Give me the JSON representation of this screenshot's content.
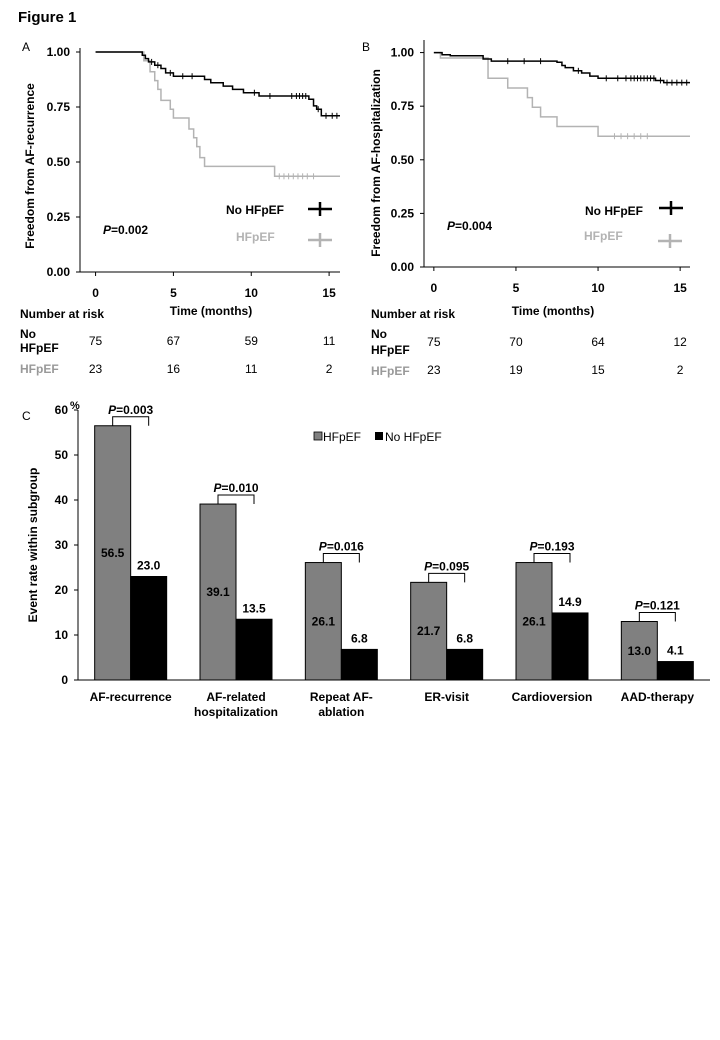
{
  "figure_title": "Figure 1",
  "colors": {
    "no_hfpef": "#000000",
    "hfpef": "#b3b3b3",
    "bar_hfpef": "#808080",
    "bar_no_hfpef": "#000000"
  },
  "risk_table": {
    "heading": "Number at risk",
    "row1_label_line1": "No",
    "row1_label_line2": "HFpEF",
    "row2_label": "HFpEF"
  },
  "chart_data": [
    {
      "panel": "A",
      "type": "line",
      "ylabel": "Freedom from AF-recurrence",
      "xlabel": "Time (months)",
      "xlim": [
        -1,
        15.7
      ],
      "ylim": [
        0,
        1.0
      ],
      "xticks": [
        "0",
        "5",
        "10",
        "15"
      ],
      "yticks": [
        "0.00",
        "0.25",
        "0.50",
        "0.75",
        "1.00"
      ],
      "p_label": "P",
      "p_value": "=0.002",
      "series": [
        {
          "name": "No HFpEF",
          "steps": [
            [
              0,
              1.0
            ],
            [
              3.0,
              0.985
            ],
            [
              3.2,
              0.97
            ],
            [
              3.4,
              0.955
            ],
            [
              3.8,
              0.94
            ],
            [
              4.2,
              0.925
            ],
            [
              4.5,
              0.905
            ],
            [
              5.0,
              0.89
            ],
            [
              7.0,
              0.875
            ],
            [
              7.4,
              0.86
            ],
            [
              8.2,
              0.845
            ],
            [
              8.8,
              0.83
            ],
            [
              9.5,
              0.815
            ],
            [
              10.5,
              0.8
            ],
            [
              13.7,
              0.785
            ],
            [
              14.0,
              0.755
            ],
            [
              14.2,
              0.74
            ],
            [
              14.5,
              0.71
            ],
            [
              15.7,
              0.71
            ]
          ],
          "censor": [
            3.6,
            4.0,
            4.8,
            5.6,
            6.2,
            10.2,
            11.2,
            12.6,
            12.9,
            13.1,
            13.3,
            13.5,
            14.3,
            14.8,
            15.2,
            15.5
          ]
        },
        {
          "name": "HFpEF",
          "steps": [
            [
              0,
              1.0
            ],
            [
              3.1,
              0.96
            ],
            [
              3.5,
              0.91
            ],
            [
              3.8,
              0.87
            ],
            [
              4.0,
              0.83
            ],
            [
              4.2,
              0.78
            ],
            [
              4.8,
              0.74
            ],
            [
              5.0,
              0.7
            ],
            [
              6.0,
              0.65
            ],
            [
              6.3,
              0.61
            ],
            [
              6.5,
              0.57
            ],
            [
              6.7,
              0.52
            ],
            [
              7.0,
              0.48
            ],
            [
              11.5,
              0.435
            ],
            [
              15.7,
              0.435
            ]
          ],
          "censor": [
            11.8,
            12.1,
            12.4,
            12.7,
            13.0,
            13.3,
            13.6,
            14.0
          ]
        }
      ],
      "at_risk": {
        "times": [
          0,
          5,
          10,
          15
        ],
        "No HFpEF": [
          "75",
          "67",
          "59",
          "11"
        ],
        "HFpEF": [
          "23",
          "16",
          "11",
          "2"
        ]
      }
    },
    {
      "panel": "B",
      "type": "line",
      "ylabel": "Freedom from AF-hospitalization",
      "xlabel": "Time (months)",
      "xlim": [
        -0.6,
        15.6
      ],
      "ylim": [
        0,
        1.04
      ],
      "xticks": [
        "0",
        "5",
        "10",
        "15"
      ],
      "yticks": [
        "0.00",
        "0.25",
        "0.50",
        "0.75",
        "1.00"
      ],
      "p_label": "P",
      "p_value": "=0.004",
      "series": [
        {
          "name": "No HFpEF",
          "steps": [
            [
              0,
              1.0
            ],
            [
              0.5,
              0.99
            ],
            [
              1.0,
              0.985
            ],
            [
              3.0,
              0.97
            ],
            [
              3.5,
              0.96
            ],
            [
              7.5,
              0.955
            ],
            [
              7.8,
              0.94
            ],
            [
              8.0,
              0.93
            ],
            [
              8.5,
              0.915
            ],
            [
              9.0,
              0.905
            ],
            [
              9.5,
              0.89
            ],
            [
              10.0,
              0.88
            ],
            [
              13.5,
              0.87
            ],
            [
              14.0,
              0.86
            ],
            [
              15.6,
              0.86
            ]
          ],
          "censor": [
            4.5,
            5.5,
            6.5,
            8.8,
            10.5,
            11.2,
            11.7,
            12.0,
            12.2,
            12.4,
            12.6,
            12.8,
            13.0,
            13.2,
            13.4,
            13.8,
            14.2,
            14.5,
            14.8,
            15.1,
            15.4
          ]
        },
        {
          "name": "HFpEF",
          "steps": [
            [
              0,
              1.0
            ],
            [
              0.4,
              0.975
            ],
            [
              3.3,
              0.88
            ],
            [
              4.5,
              0.835
            ],
            [
              5.7,
              0.79
            ],
            [
              6.0,
              0.745
            ],
            [
              6.5,
              0.7
            ],
            [
              7.5,
              0.655
            ],
            [
              10.0,
              0.61
            ],
            [
              15.6,
              0.61
            ]
          ],
          "censor": [
            11.0,
            11.4,
            11.8,
            12.2,
            12.6,
            13.0
          ]
        }
      ],
      "at_risk": {
        "times": [
          0,
          5,
          10,
          15
        ],
        "No HFpEF": [
          "75",
          "70",
          "64",
          "12"
        ],
        "HFpEF": [
          "23",
          "19",
          "15",
          "2"
        ]
      }
    },
    {
      "panel": "C",
      "type": "bar",
      "ylabel": "Event rate within subgroup",
      "yunit": "%",
      "ylim": [
        0,
        60
      ],
      "yticks": [
        "0",
        "10",
        "20",
        "30",
        "40",
        "50",
        "60"
      ],
      "categories": [
        [
          "AF-recurrence"
        ],
        [
          "AF-related",
          "hospitalization"
        ],
        [
          "Repeat AF-",
          "ablation"
        ],
        [
          "ER-visit"
        ],
        [
          "Cardioversion"
        ],
        [
          "AAD-therapy"
        ]
      ],
      "series": [
        {
          "name": "HFpEF",
          "values": [
            56.5,
            39.1,
            26.1,
            21.7,
            26.1,
            13.0
          ],
          "labels": [
            "56.5",
            "39.1",
            "26.1",
            "21.7",
            "26.1",
            "13.0"
          ]
        },
        {
          "name": "No HFpEF",
          "values": [
            23.0,
            13.5,
            6.8,
            6.8,
            14.9,
            4.1
          ],
          "labels": [
            "23.0",
            "13.5",
            "6.8",
            "6.8",
            "14.9",
            "4.1"
          ]
        }
      ],
      "p_label": "P",
      "p_values": [
        "=0.003",
        "=0.010",
        "=0.016",
        "=0.095",
        "=0.193",
        "=0.121"
      ],
      "legend": [
        "HFpEF",
        "No HFpEF"
      ]
    }
  ]
}
